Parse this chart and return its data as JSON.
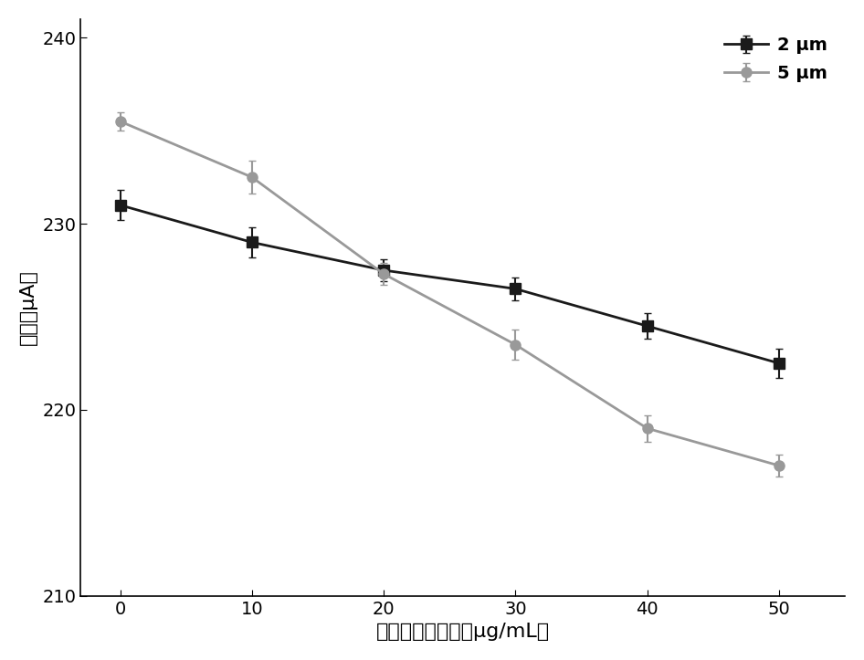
{
  "x": [
    0,
    10,
    20,
    30,
    40,
    50
  ],
  "series_2um": {
    "y": [
      231.0,
      229.0,
      227.5,
      226.5,
      224.5,
      222.5
    ],
    "yerr": [
      0.8,
      0.8,
      0.6,
      0.6,
      0.7,
      0.8
    ],
    "color": "#1a1a1a",
    "label": "2 μm",
    "marker": "s",
    "linestyle": "-"
  },
  "series_5um": {
    "y": [
      235.5,
      232.5,
      227.3,
      223.5,
      219.0,
      217.0
    ],
    "yerr": [
      0.5,
      0.9,
      0.6,
      0.8,
      0.7,
      0.6
    ],
    "color": "#999999",
    "label": "5 μm",
    "marker": "o",
    "linestyle": "-"
  },
  "xlabel": "链露亲和素浓度（μg/mL）",
  "ylabel": "电流（μA）",
  "xlim": [
    -3,
    55
  ],
  "ylim": [
    210,
    241
  ],
  "yticks": [
    210,
    220,
    230,
    240
  ],
  "xticks": [
    0,
    10,
    20,
    30,
    40,
    50
  ],
  "label_fontsize": 16,
  "tick_fontsize": 14,
  "legend_fontsize": 14,
  "linewidth": 2.0,
  "markersize": 8,
  "capsize": 3,
  "elinewidth": 1.5,
  "background_color": "#ffffff"
}
